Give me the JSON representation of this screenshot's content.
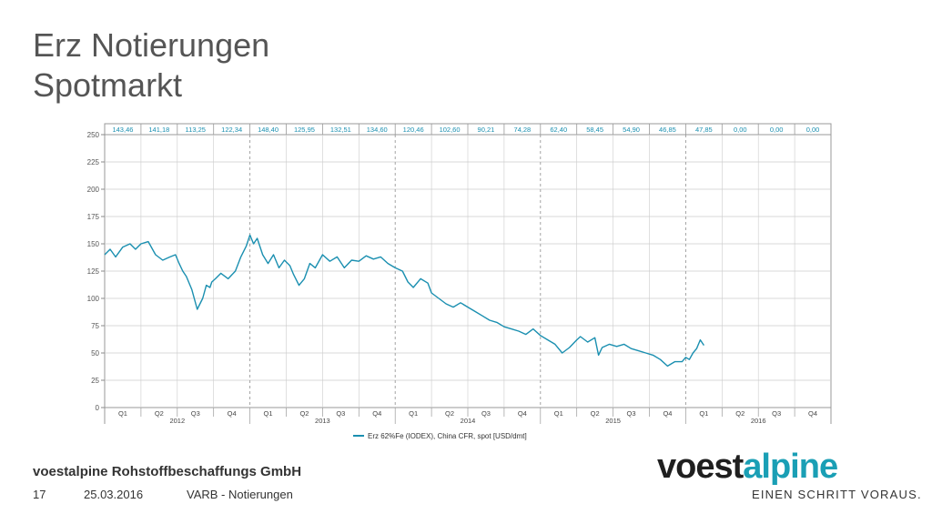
{
  "slide": {
    "title_line1": "Erz Notierungen",
    "title_line2": "Spotmarkt",
    "company": "voestalpine Rohstoffbeschaffungs GmbH",
    "page_number": "17",
    "date": "25.03.2016",
    "subject": "VARB - Notierungen",
    "logo_part1": "voest",
    "logo_part2": "alpine",
    "slogan": "EINEN SCHRITT VORAUS.",
    "colors": {
      "series": "#1a8fb0",
      "grid": "#cccccc",
      "text": "#555555",
      "logo_accent": "#1a9fb5"
    }
  },
  "chart_data": {
    "type": "line",
    "title": "",
    "xlabel": "",
    "ylabel": "",
    "ylim": [
      0,
      250
    ],
    "yticks": [
      0,
      25,
      50,
      75,
      100,
      125,
      150,
      175,
      200,
      225,
      250
    ],
    "grid": true,
    "legend_position": "bottom-center",
    "quarters": [
      "Q1",
      "Q2",
      "Q3",
      "Q4",
      "Q1",
      "Q2",
      "Q3",
      "Q4",
      "Q1",
      "Q2",
      "Q3",
      "Q4",
      "Q1",
      "Q2",
      "Q3",
      "Q4",
      "Q1",
      "Q2",
      "Q3",
      "Q4"
    ],
    "years": [
      "2012",
      "2013",
      "2014",
      "2015",
      "2016"
    ],
    "quarter_averages": [
      "143,46",
      "141,18",
      "113,25",
      "122,34",
      "148,40",
      "125,95",
      "132,51",
      "134,60",
      "120,46",
      "102,60",
      "90,21",
      "74,28",
      "62,40",
      "58,45",
      "54,90",
      "46,85",
      "47,85",
      "0,00",
      "0,00",
      "0,00"
    ],
    "series": [
      {
        "name": "Erz 62%Fe (IODEX), China CFR, spot [USD/dmt]",
        "x_quarter": [
          0,
          0.15,
          0.3,
          0.5,
          0.7,
          0.85,
          1.0,
          1.2,
          1.4,
          1.6,
          1.8,
          1.95,
          2.05,
          2.15,
          2.25,
          2.4,
          2.55,
          2.7,
          2.8,
          2.9,
          2.95,
          3.05,
          3.2,
          3.4,
          3.6,
          3.75,
          3.9,
          4.0,
          4.1,
          4.2,
          4.35,
          4.5,
          4.65,
          4.8,
          4.95,
          5.1,
          5.2,
          5.35,
          5.5,
          5.65,
          5.8,
          6.0,
          6.2,
          6.4,
          6.6,
          6.8,
          7.0,
          7.2,
          7.4,
          7.6,
          7.8,
          8.0,
          8.2,
          8.35,
          8.5,
          8.7,
          8.9,
          9.0,
          9.2,
          9.4,
          9.6,
          9.8,
          10.0,
          10.2,
          10.4,
          10.6,
          10.8,
          11.0,
          11.2,
          11.4,
          11.6,
          11.8,
          12.0,
          12.2,
          12.4,
          12.6,
          12.8,
          13.0,
          13.1,
          13.3,
          13.5,
          13.6,
          13.7,
          13.9,
          14.1,
          14.3,
          14.5,
          14.7,
          14.9,
          15.1,
          15.3,
          15.5,
          15.7,
          15.9,
          16.0,
          16.1,
          16.2,
          16.3,
          16.4,
          16.5
        ],
        "values": [
          140,
          145,
          138,
          147,
          150,
          145,
          150,
          152,
          140,
          135,
          138,
          140,
          132,
          125,
          120,
          108,
          90,
          100,
          112,
          110,
          115,
          118,
          123,
          118,
          125,
          138,
          148,
          158,
          150,
          155,
          140,
          132,
          140,
          128,
          135,
          130,
          122,
          112,
          118,
          132,
          128,
          140,
          134,
          138,
          128,
          135,
          134,
          139,
          136,
          138,
          132,
          128,
          125,
          115,
          110,
          118,
          114,
          105,
          100,
          95,
          92,
          96,
          92,
          88,
          84,
          80,
          78,
          74,
          72,
          70,
          67,
          72,
          66,
          62,
          58,
          50,
          55,
          62,
          65,
          60,
          64,
          48,
          55,
          58,
          56,
          58,
          54,
          52,
          50,
          48,
          44,
          38,
          42,
          42,
          46,
          44,
          50,
          54,
          62,
          57
        ]
      }
    ]
  }
}
